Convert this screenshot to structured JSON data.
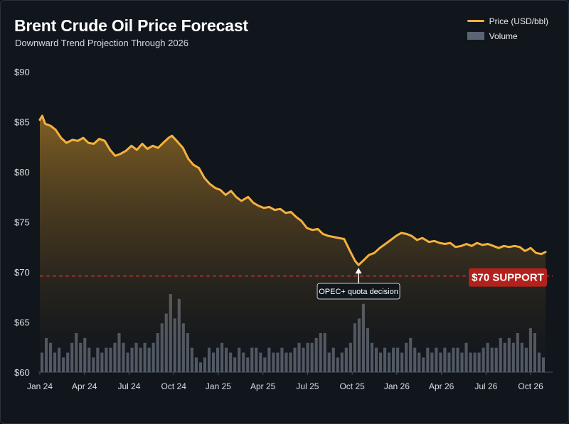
{
  "header": {
    "title": "Brent Crude Oil Price Forecast",
    "subtitle": "Downward Trend Projection Through 2026"
  },
  "legend": {
    "items": [
      {
        "label": "Price (USD/bbl)",
        "kind": "line",
        "color": "#f5b13d"
      },
      {
        "label": "Volume",
        "kind": "bar",
        "color": "#5b6472"
      }
    ]
  },
  "colors": {
    "background": "#11161d",
    "price_line": "#f5b13d",
    "volume_bar": "#5b6472",
    "support_line": "#d63a2f",
    "support_badge": "#b3211d"
  },
  "chart_data": {
    "type": "line",
    "title": "Brent Crude Oil Price Forecast",
    "subtitle": "Downward Trend Projection Through 2026",
    "xlabel": "",
    "ylabel": "",
    "y_ticks": [
      "$60",
      "$65",
      "$70",
      "$75",
      "$80",
      "$85",
      "$90"
    ],
    "ylim": [
      60,
      90
    ],
    "x_ticks": [
      "Jan 24",
      "Apr 24",
      "Jul 24",
      "Oct 24",
      "Jan 25",
      "Apr 25",
      "Jul 25",
      "Oct 25",
      "Jan 26",
      "Apr 26",
      "Jul 26",
      "Oct 26"
    ],
    "x_range": [
      "2024-01",
      "2026-11"
    ],
    "grid": false,
    "legend_position": "top-right",
    "series": [
      {
        "name": "Price (USD/bbl)",
        "kind": "line",
        "points": [
          [
            "2024-01-01",
            85.2
          ],
          [
            "2024-01-06",
            85.6
          ],
          [
            "2024-01-12",
            84.8
          ],
          [
            "2024-01-23",
            84.6
          ],
          [
            "2024-02-03",
            84.2
          ],
          [
            "2024-02-14",
            83.4
          ],
          [
            "2024-02-25",
            82.9
          ],
          [
            "2024-03-07",
            83.2
          ],
          [
            "2024-03-18",
            83.1
          ],
          [
            "2024-03-29",
            83.4
          ],
          [
            "2024-04-09",
            82.9
          ],
          [
            "2024-04-20",
            82.8
          ],
          [
            "2024-05-01",
            83.3
          ],
          [
            "2024-05-12",
            83.1
          ],
          [
            "2024-05-23",
            82.2
          ],
          [
            "2024-06-03",
            81.6
          ],
          [
            "2024-06-14",
            81.8
          ],
          [
            "2024-06-25",
            82.1
          ],
          [
            "2024-07-06",
            82.6
          ],
          [
            "2024-07-17",
            82.2
          ],
          [
            "2024-07-28",
            82.8
          ],
          [
            "2024-08-08",
            82.3
          ],
          [
            "2024-08-19",
            82.6
          ],
          [
            "2024-08-30",
            82.4
          ],
          [
            "2024-09-10",
            82.9
          ],
          [
            "2024-09-21",
            83.4
          ],
          [
            "2024-09-28",
            83.6
          ],
          [
            "2024-10-09",
            83.0
          ],
          [
            "2024-10-20",
            82.4
          ],
          [
            "2024-10-31",
            81.3
          ],
          [
            "2024-11-11",
            80.7
          ],
          [
            "2024-11-22",
            80.4
          ],
          [
            "2024-12-03",
            79.4
          ],
          [
            "2024-12-14",
            78.8
          ],
          [
            "2024-12-25",
            78.4
          ],
          [
            "2025-01-05",
            78.2
          ],
          [
            "2025-01-16",
            77.7
          ],
          [
            "2025-01-27",
            78.1
          ],
          [
            "2025-02-07",
            77.5
          ],
          [
            "2025-02-18",
            77.1
          ],
          [
            "2025-03-01",
            77.5
          ],
          [
            "2025-03-12",
            76.9
          ],
          [
            "2025-03-23",
            76.6
          ],
          [
            "2025-04-03",
            76.4
          ],
          [
            "2025-04-14",
            76.5
          ],
          [
            "2025-04-25",
            76.2
          ],
          [
            "2025-05-06",
            76.3
          ],
          [
            "2025-05-17",
            75.9
          ],
          [
            "2025-05-28",
            76.0
          ],
          [
            "2025-06-08",
            75.5
          ],
          [
            "2025-06-19",
            75.1
          ],
          [
            "2025-06-30",
            74.4
          ],
          [
            "2025-07-11",
            74.2
          ],
          [
            "2025-07-22",
            74.3
          ],
          [
            "2025-08-02",
            73.8
          ],
          [
            "2025-08-13",
            73.6
          ],
          [
            "2025-08-24",
            73.5
          ],
          [
            "2025-09-04",
            73.4
          ],
          [
            "2025-09-15",
            73.3
          ],
          [
            "2025-09-26",
            72.2
          ],
          [
            "2025-10-07",
            71.1
          ],
          [
            "2025-10-14",
            70.7
          ],
          [
            "2025-10-25",
            71.2
          ],
          [
            "2025-11-05",
            71.7
          ],
          [
            "2025-11-16",
            71.9
          ],
          [
            "2025-11-27",
            72.4
          ],
          [
            "2025-12-08",
            72.8
          ],
          [
            "2025-12-19",
            73.2
          ],
          [
            "2025-12-30",
            73.6
          ],
          [
            "2026-01-10",
            73.9
          ],
          [
            "2026-01-21",
            73.8
          ],
          [
            "2026-02-01",
            73.6
          ],
          [
            "2026-02-12",
            73.2
          ],
          [
            "2026-02-23",
            73.4
          ],
          [
            "2026-03-06",
            73.0
          ],
          [
            "2026-03-17",
            73.1
          ],
          [
            "2026-03-28",
            72.9
          ],
          [
            "2026-04-08",
            72.8
          ],
          [
            "2026-04-19",
            72.9
          ],
          [
            "2026-04-30",
            72.5
          ],
          [
            "2026-05-11",
            72.6
          ],
          [
            "2026-05-22",
            72.8
          ],
          [
            "2026-06-02",
            72.6
          ],
          [
            "2026-06-13",
            72.9
          ],
          [
            "2026-06-24",
            72.7
          ],
          [
            "2026-07-05",
            72.8
          ],
          [
            "2026-07-16",
            72.6
          ],
          [
            "2026-07-27",
            72.4
          ],
          [
            "2026-08-07",
            72.6
          ],
          [
            "2026-08-18",
            72.5
          ],
          [
            "2026-08-29",
            72.6
          ],
          [
            "2026-09-09",
            72.5
          ],
          [
            "2026-09-20",
            72.1
          ],
          [
            "2026-10-01",
            72.4
          ],
          [
            "2026-10-12",
            71.9
          ],
          [
            "2026-10-23",
            71.8
          ],
          [
            "2026-11-01",
            72.0
          ]
        ]
      },
      {
        "name": "Volume",
        "kind": "bar",
        "values": [
          4,
          7,
          6,
          4,
          5,
          3,
          4,
          6,
          8,
          6,
          7,
          5,
          3,
          5,
          4,
          5,
          5,
          6,
          8,
          6,
          4,
          5,
          6,
          5,
          6,
          5,
          6,
          8,
          10,
          12,
          16,
          11,
          15,
          10,
          8,
          5,
          3,
          2,
          3,
          5,
          4,
          5,
          6,
          5,
          4,
          3,
          5,
          4,
          3,
          5,
          5,
          4,
          3,
          5,
          4,
          4,
          5,
          4,
          4,
          5,
          6,
          5,
          6,
          6,
          7,
          8,
          8,
          4,
          5,
          3,
          4,
          5,
          6,
          10,
          11,
          14,
          9,
          6,
          5,
          4,
          5,
          4,
          5,
          5,
          4,
          6,
          7,
          5,
          4,
          3,
          5,
          4,
          5,
          4,
          5,
          4,
          5,
          5,
          4,
          6,
          4,
          4,
          4,
          5,
          6,
          5,
          5,
          7,
          6,
          7,
          6,
          8,
          6,
          5,
          9,
          8,
          4,
          3
        ]
      }
    ],
    "reference_lines": [
      {
        "y": 69.6,
        "label": "$70 SUPPORT",
        "style": "dashed",
        "color": "#d63a2f"
      }
    ],
    "annotations": [
      {
        "text": "OPEC+ quota decision",
        "x": "2025-10-14",
        "y": 70.7
      }
    ]
  }
}
